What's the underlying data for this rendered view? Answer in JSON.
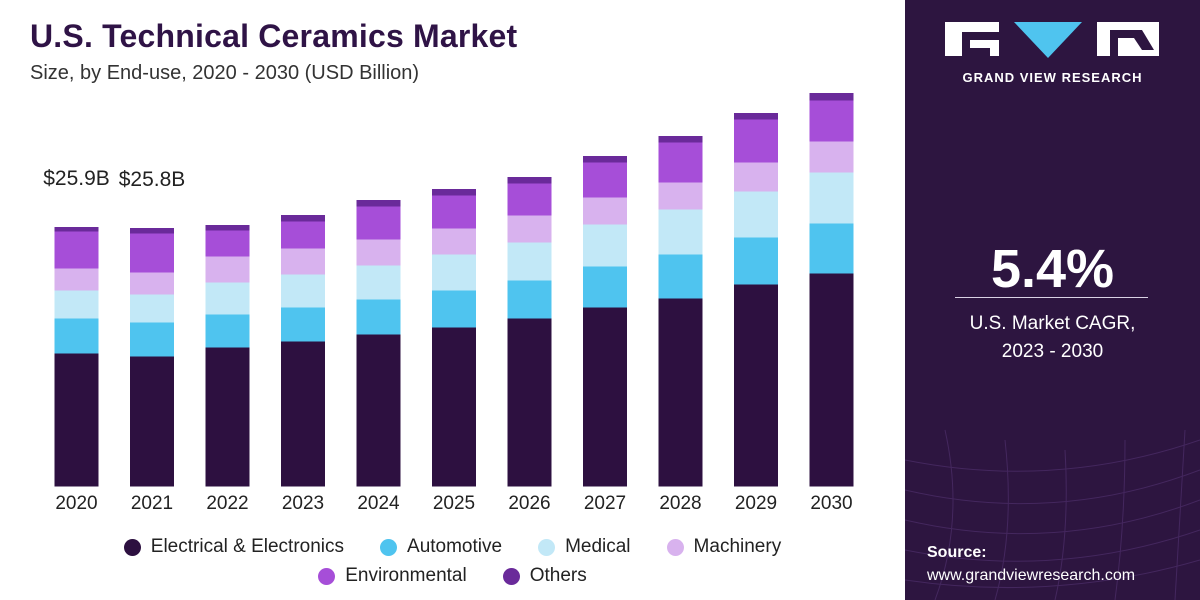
{
  "chart_data": {
    "type": "bar",
    "stacked": true,
    "title": "U.S. Technical Ceramics Market",
    "subtitle": "Size, by End-use, 2020 - 2030 (USD Billion)",
    "categories": [
      "2020",
      "2021",
      "2022",
      "2023",
      "2024",
      "2025",
      "2026",
      "2027",
      "2028",
      "2029",
      "2030"
    ],
    "series": [
      {
        "name": "Electrical & Electronics",
        "color": "#2d1040",
        "values": [
          13.3,
          13.0,
          13.9,
          14.5,
          15.2,
          15.9,
          16.8,
          17.9,
          18.8,
          20.2,
          21.3
        ]
      },
      {
        "name": "Automotive",
        "color": "#4fc4ef",
        "values": [
          3.5,
          3.4,
          3.3,
          3.4,
          3.5,
          3.7,
          3.8,
          4.1,
          4.4,
          4.7,
          5.0
        ]
      },
      {
        "name": "Medical",
        "color": "#c2e8f7",
        "values": [
          2.8,
          2.8,
          3.2,
          3.3,
          3.4,
          3.6,
          3.8,
          4.2,
          4.5,
          4.6,
          5.1
        ]
      },
      {
        "name": "Machinery",
        "color": "#d8b2ee",
        "values": [
          2.2,
          2.2,
          2.6,
          2.6,
          2.6,
          2.6,
          2.7,
          2.7,
          2.7,
          2.9,
          3.1
        ]
      },
      {
        "name": "Environmental",
        "color": "#a64ed8",
        "values": [
          3.7,
          3.9,
          2.6,
          2.7,
          3.3,
          3.3,
          3.2,
          3.5,
          4.0,
          4.3,
          4.1
        ]
      },
      {
        "name": "Others",
        "color": "#6a2a9a",
        "values": [
          0.4,
          0.5,
          0.5,
          0.6,
          0.6,
          0.6,
          0.6,
          0.6,
          0.6,
          0.6,
          0.7
        ]
      }
    ],
    "data_labels": [
      {
        "category": "2020",
        "text": "$25.9B"
      },
      {
        "category": "2021",
        "text": "$25.8B"
      }
    ],
    "ylim": [
      0,
      40
    ],
    "grid": false,
    "legend_position": "bottom"
  },
  "legend": {
    "row1": [
      {
        "label": "Electrical & Electronics",
        "color": "#2d1040"
      },
      {
        "label": "Automotive",
        "color": "#4fc4ef"
      },
      {
        "label": "Medical",
        "color": "#c2e8f7"
      },
      {
        "label": "Machinery",
        "color": "#d8b2ee"
      }
    ],
    "row2": [
      {
        "label": "Environmental",
        "color": "#a64ed8"
      },
      {
        "label": "Others",
        "color": "#6a2a9a"
      }
    ]
  },
  "panel": {
    "logo_icon": "grand-view-research-logo",
    "logo_text": "GRAND VIEW RESEARCH",
    "cagr_value": "5.4%",
    "cagr_label_line1": "U.S. Market CAGR,",
    "cagr_label_line2": "2023 - 2030",
    "source_label": "Source:",
    "source_url": "www.grandviewresearch.com"
  },
  "colors": {
    "title": "#2f1346",
    "panel_background": "#2d1540",
    "panel_text": "#ffffff"
  }
}
